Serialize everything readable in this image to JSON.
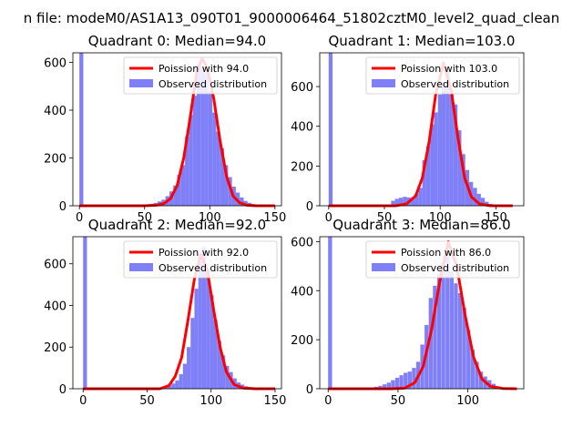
{
  "figure_title": "n file: modeM0/AS1A13_090T01_9000006464_51802cztM0_level2_quad_clean",
  "colors": {
    "bar": "#7f7ff7",
    "line": "#ff0000"
  },
  "chart_data": [
    {
      "type": "bar",
      "title": "Quadrant 0: Median=94.0",
      "xlim": [
        -5,
        155
      ],
      "ylim": [
        0,
        640
      ],
      "xticks": [
        0,
        50,
        100,
        150
      ],
      "yticks": [
        0,
        200,
        400,
        600
      ],
      "legend": [
        "Poission with 94.0",
        "Observed distribution"
      ],
      "legend_position": "top-right",
      "bin_width": 3,
      "hist_x": [
        0,
        45,
        48,
        51,
        54,
        57,
        60,
        63,
        66,
        69,
        72,
        75,
        78,
        81,
        84,
        87,
        90,
        93,
        96,
        99,
        102,
        105,
        108,
        111,
        114,
        117,
        120,
        123,
        126,
        129,
        132,
        135,
        138,
        141,
        144
      ],
      "hist_y": [
        640,
        2,
        3,
        5,
        8,
        12,
        18,
        25,
        40,
        60,
        85,
        130,
        170,
        290,
        380,
        460,
        590,
        580,
        560,
        480,
        390,
        310,
        240,
        170,
        120,
        80,
        55,
        35,
        20,
        12,
        7,
        4,
        3,
        2,
        1
      ],
      "poisson_x": [
        0,
        50,
        60,
        65,
        70,
        75,
        80,
        85,
        90,
        94,
        98,
        103,
        108,
        113,
        118,
        123,
        128,
        135,
        150
      ],
      "poisson_y": [
        0,
        0,
        3,
        10,
        30,
        85,
        200,
        370,
        560,
        615,
        580,
        450,
        270,
        120,
        40,
        12,
        3,
        0,
        0
      ]
    },
    {
      "type": "bar",
      "title": "Quadrant 1: Median=103.0",
      "xlim": [
        -8,
        175
      ],
      "ylim": [
        0,
        770
      ],
      "xticks": [
        0,
        50,
        100,
        150
      ],
      "yticks": [
        0,
        200,
        400,
        600
      ],
      "legend": [
        "Poission with 103.0",
        "Observed distribution"
      ],
      "legend_position": "top-right",
      "bin_width": 3.5,
      "hist_x": [
        0,
        56,
        59.5,
        63,
        66.5,
        70,
        73.5,
        77,
        80.5,
        84,
        87.5,
        91,
        94.5,
        98,
        101.5,
        105,
        108.5,
        112,
        115.5,
        119,
        122.5,
        126,
        129.5,
        133,
        136.5,
        140,
        143.5,
        147,
        150.5,
        154
      ],
      "hist_y": [
        770,
        25,
        35,
        40,
        45,
        42,
        35,
        60,
        90,
        230,
        300,
        410,
        470,
        560,
        620,
        680,
        560,
        510,
        380,
        260,
        180,
        120,
        90,
        60,
        40,
        20,
        10,
        5,
        3,
        2
      ],
      "poisson_x": [
        0,
        50,
        60,
        70,
        78,
        84,
        90,
        96,
        103,
        110,
        116,
        122,
        128,
        135,
        145,
        165
      ],
      "poisson_y": [
        0,
        0,
        0,
        10,
        50,
        140,
        320,
        560,
        720,
        580,
        340,
        140,
        45,
        10,
        0,
        0
      ]
    },
    {
      "type": "bar",
      "title": "Quadrant 2: Median=92.0",
      "xlim": [
        -8,
        155
      ],
      "ylim": [
        0,
        730
      ],
      "xticks": [
        0,
        50,
        100,
        150
      ],
      "yticks": [
        0,
        200,
        400,
        600
      ],
      "legend": [
        "Poission with 92.0",
        "Observed distribution"
      ],
      "legend_position": "top-right",
      "bin_width": 3,
      "hist_x": [
        0,
        60,
        63,
        66,
        69,
        72,
        75,
        78,
        81,
        84,
        87,
        90,
        93,
        96,
        99,
        102,
        105,
        108,
        111,
        114,
        117,
        120,
        123,
        126,
        129,
        132,
        135,
        138,
        141,
        144
      ],
      "hist_y": [
        730,
        4,
        8,
        15,
        25,
        40,
        70,
        120,
        200,
        340,
        480,
        640,
        680,
        560,
        450,
        330,
        230,
        160,
        110,
        80,
        50,
        30,
        20,
        12,
        8,
        5,
        3,
        2,
        1,
        1
      ],
      "poisson_x": [
        0,
        50,
        60,
        67,
        72,
        77,
        82,
        87,
        92,
        97,
        102,
        107,
        112,
        118,
        125,
        135,
        150
      ],
      "poisson_y": [
        0,
        0,
        0,
        15,
        60,
        150,
        330,
        530,
        645,
        570,
        380,
        200,
        80,
        20,
        3,
        0,
        0
      ]
    },
    {
      "type": "bar",
      "title": "Quadrant 3: Median=86.0",
      "xlim": [
        -6,
        140
      ],
      "ylim": [
        0,
        620
      ],
      "xticks": [
        0,
        50,
        100
      ],
      "yticks": [
        0,
        200,
        400,
        600
      ],
      "legend": [
        "Poission with 86.0",
        "Observed distribution"
      ],
      "legend_position": "top-right",
      "bin_width": 2.8,
      "hist_x": [
        0,
        30,
        33,
        36,
        39,
        42,
        45,
        48,
        51,
        54,
        57,
        60,
        63,
        66,
        69,
        72,
        75,
        78,
        81,
        84,
        87,
        90,
        93,
        96,
        99,
        102,
        105,
        108,
        111,
        114,
        117,
        120,
        123,
        126,
        129
      ],
      "hist_y": [
        620,
        5,
        8,
        12,
        18,
        25,
        35,
        45,
        55,
        65,
        70,
        85,
        110,
        180,
        260,
        370,
        420,
        470,
        510,
        560,
        480,
        430,
        390,
        330,
        240,
        160,
        110,
        70,
        50,
        35,
        20,
        10,
        5,
        3,
        2
      ],
      "poisson_x": [
        0,
        45,
        55,
        62,
        68,
        74,
        80,
        86,
        92,
        98,
        104,
        110,
        116,
        125,
        135
      ],
      "poisson_y": [
        0,
        0,
        3,
        25,
        90,
        240,
        440,
        600,
        500,
        300,
        130,
        40,
        10,
        1,
        0
      ]
    }
  ]
}
